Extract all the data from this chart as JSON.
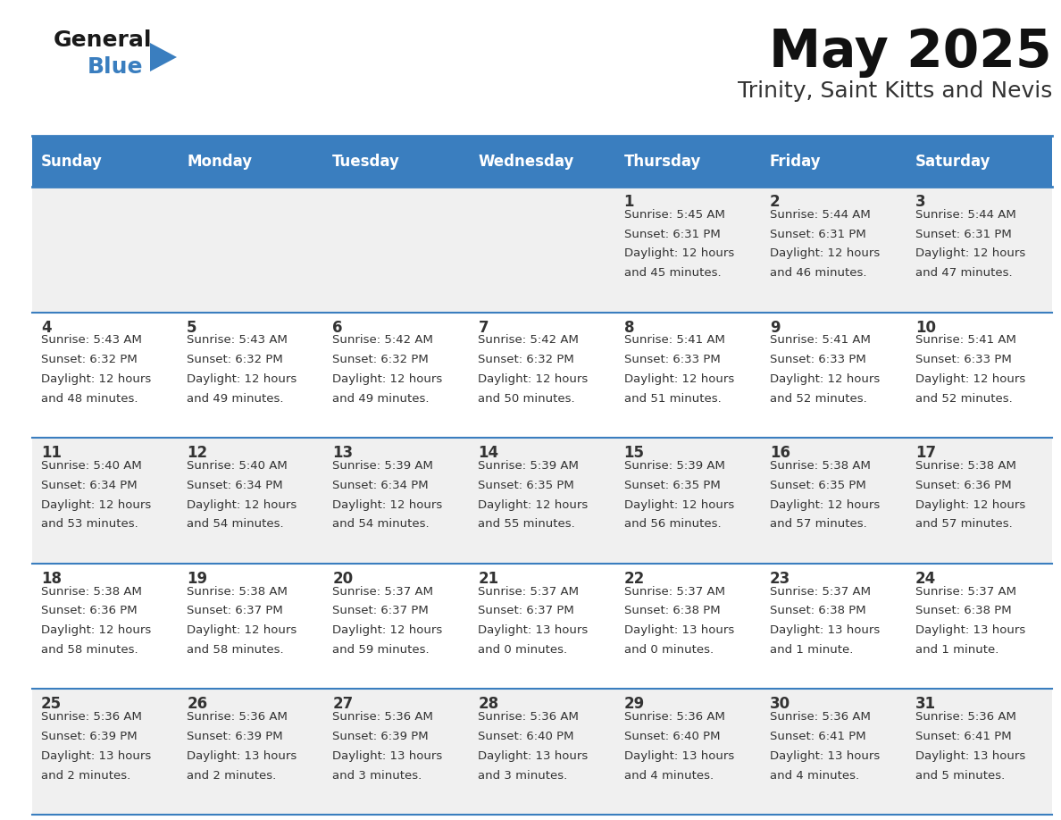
{
  "title": "May 2025",
  "subtitle": "Trinity, Saint Kitts and Nevis",
  "header_bg_color": "#3a7ebf",
  "header_text_color": "#ffffff",
  "day_names": [
    "Sunday",
    "Monday",
    "Tuesday",
    "Wednesday",
    "Thursday",
    "Friday",
    "Saturday"
  ],
  "row_bg_even": "#f0f0f0",
  "row_bg_odd": "#ffffff",
  "cell_border_color": "#3a7ebf",
  "text_color": "#333333",
  "days": [
    {
      "day": 1,
      "col": 4,
      "row": 0,
      "sunrise": "5:45 AM",
      "sunset": "6:31 PM",
      "daylight": "12 hours",
      "daylight2": "and 45 minutes."
    },
    {
      "day": 2,
      "col": 5,
      "row": 0,
      "sunrise": "5:44 AM",
      "sunset": "6:31 PM",
      "daylight": "12 hours",
      "daylight2": "and 46 minutes."
    },
    {
      "day": 3,
      "col": 6,
      "row": 0,
      "sunrise": "5:44 AM",
      "sunset": "6:31 PM",
      "daylight": "12 hours",
      "daylight2": "and 47 minutes."
    },
    {
      "day": 4,
      "col": 0,
      "row": 1,
      "sunrise": "5:43 AM",
      "sunset": "6:32 PM",
      "daylight": "12 hours",
      "daylight2": "and 48 minutes."
    },
    {
      "day": 5,
      "col": 1,
      "row": 1,
      "sunrise": "5:43 AM",
      "sunset": "6:32 PM",
      "daylight": "12 hours",
      "daylight2": "and 49 minutes."
    },
    {
      "day": 6,
      "col": 2,
      "row": 1,
      "sunrise": "5:42 AM",
      "sunset": "6:32 PM",
      "daylight": "12 hours",
      "daylight2": "and 49 minutes."
    },
    {
      "day": 7,
      "col": 3,
      "row": 1,
      "sunrise": "5:42 AM",
      "sunset": "6:32 PM",
      "daylight": "12 hours",
      "daylight2": "and 50 minutes."
    },
    {
      "day": 8,
      "col": 4,
      "row": 1,
      "sunrise": "5:41 AM",
      "sunset": "6:33 PM",
      "daylight": "12 hours",
      "daylight2": "and 51 minutes."
    },
    {
      "day": 9,
      "col": 5,
      "row": 1,
      "sunrise": "5:41 AM",
      "sunset": "6:33 PM",
      "daylight": "12 hours",
      "daylight2": "and 52 minutes."
    },
    {
      "day": 10,
      "col": 6,
      "row": 1,
      "sunrise": "5:41 AM",
      "sunset": "6:33 PM",
      "daylight": "12 hours",
      "daylight2": "and 52 minutes."
    },
    {
      "day": 11,
      "col": 0,
      "row": 2,
      "sunrise": "5:40 AM",
      "sunset": "6:34 PM",
      "daylight": "12 hours",
      "daylight2": "and 53 minutes."
    },
    {
      "day": 12,
      "col": 1,
      "row": 2,
      "sunrise": "5:40 AM",
      "sunset": "6:34 PM",
      "daylight": "12 hours",
      "daylight2": "and 54 minutes."
    },
    {
      "day": 13,
      "col": 2,
      "row": 2,
      "sunrise": "5:39 AM",
      "sunset": "6:34 PM",
      "daylight": "12 hours",
      "daylight2": "and 54 minutes."
    },
    {
      "day": 14,
      "col": 3,
      "row": 2,
      "sunrise": "5:39 AM",
      "sunset": "6:35 PM",
      "daylight": "12 hours",
      "daylight2": "and 55 minutes."
    },
    {
      "day": 15,
      "col": 4,
      "row": 2,
      "sunrise": "5:39 AM",
      "sunset": "6:35 PM",
      "daylight": "12 hours",
      "daylight2": "and 56 minutes."
    },
    {
      "day": 16,
      "col": 5,
      "row": 2,
      "sunrise": "5:38 AM",
      "sunset": "6:35 PM",
      "daylight": "12 hours",
      "daylight2": "and 57 minutes."
    },
    {
      "day": 17,
      "col": 6,
      "row": 2,
      "sunrise": "5:38 AM",
      "sunset": "6:36 PM",
      "daylight": "12 hours",
      "daylight2": "and 57 minutes."
    },
    {
      "day": 18,
      "col": 0,
      "row": 3,
      "sunrise": "5:38 AM",
      "sunset": "6:36 PM",
      "daylight": "12 hours",
      "daylight2": "and 58 minutes."
    },
    {
      "day": 19,
      "col": 1,
      "row": 3,
      "sunrise": "5:38 AM",
      "sunset": "6:37 PM",
      "daylight": "12 hours",
      "daylight2": "and 58 minutes."
    },
    {
      "day": 20,
      "col": 2,
      "row": 3,
      "sunrise": "5:37 AM",
      "sunset": "6:37 PM",
      "daylight": "12 hours",
      "daylight2": "and 59 minutes."
    },
    {
      "day": 21,
      "col": 3,
      "row": 3,
      "sunrise": "5:37 AM",
      "sunset": "6:37 PM",
      "daylight": "13 hours",
      "daylight2": "and 0 minutes."
    },
    {
      "day": 22,
      "col": 4,
      "row": 3,
      "sunrise": "5:37 AM",
      "sunset": "6:38 PM",
      "daylight": "13 hours",
      "daylight2": "and 0 minutes."
    },
    {
      "day": 23,
      "col": 5,
      "row": 3,
      "sunrise": "5:37 AM",
      "sunset": "6:38 PM",
      "daylight": "13 hours",
      "daylight2": "and 1 minute."
    },
    {
      "day": 24,
      "col": 6,
      "row": 3,
      "sunrise": "5:37 AM",
      "sunset": "6:38 PM",
      "daylight": "13 hours",
      "daylight2": "and 1 minute."
    },
    {
      "day": 25,
      "col": 0,
      "row": 4,
      "sunrise": "5:36 AM",
      "sunset": "6:39 PM",
      "daylight": "13 hours",
      "daylight2": "and 2 minutes."
    },
    {
      "day": 26,
      "col": 1,
      "row": 4,
      "sunrise": "5:36 AM",
      "sunset": "6:39 PM",
      "daylight": "13 hours",
      "daylight2": "and 2 minutes."
    },
    {
      "day": 27,
      "col": 2,
      "row": 4,
      "sunrise": "5:36 AM",
      "sunset": "6:39 PM",
      "daylight": "13 hours",
      "daylight2": "and 3 minutes."
    },
    {
      "day": 28,
      "col": 3,
      "row": 4,
      "sunrise": "5:36 AM",
      "sunset": "6:40 PM",
      "daylight": "13 hours",
      "daylight2": "and 3 minutes."
    },
    {
      "day": 29,
      "col": 4,
      "row": 4,
      "sunrise": "5:36 AM",
      "sunset": "6:40 PM",
      "daylight": "13 hours",
      "daylight2": "and 4 minutes."
    },
    {
      "day": 30,
      "col": 5,
      "row": 4,
      "sunrise": "5:36 AM",
      "sunset": "6:41 PM",
      "daylight": "13 hours",
      "daylight2": "and 4 minutes."
    },
    {
      "day": 31,
      "col": 6,
      "row": 4,
      "sunrise": "5:36 AM",
      "sunset": "6:41 PM",
      "daylight": "13 hours",
      "daylight2": "and 5 minutes."
    }
  ],
  "logo_general_color": "#1a1a1a",
  "logo_blue_color": "#3a7ebf"
}
